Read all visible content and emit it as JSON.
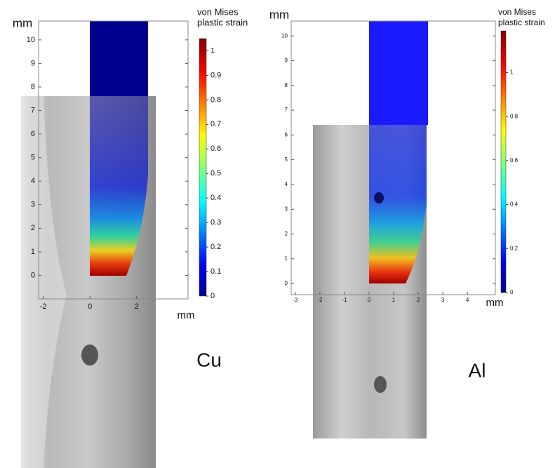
{
  "chart_data": [
    {
      "type": "heatmap",
      "y_label": "mm",
      "x_label": "mm",
      "colorbar_label": [
        "von Mises",
        "plastic strain"
      ],
      "xlim": [
        -2.2,
        4.2
      ],
      "xticks": [
        -2,
        0,
        2
      ],
      "ylim": [
        -1,
        10.8
      ],
      "yticks": [
        0,
        1,
        2,
        3,
        4,
        5,
        6,
        7,
        8,
        9,
        10
      ],
      "clim": [
        0,
        1.05
      ],
      "cticks": [
        0,
        0.1,
        0.2,
        0.3,
        0.4,
        0.5,
        0.6,
        0.7,
        0.8,
        0.9,
        1
      ],
      "annotation": "Cu"
    },
    {
      "type": "heatmap",
      "y_label": "mm",
      "x_label": "mm",
      "colorbar_label": [
        "von Mises",
        "plastic strain"
      ],
      "xlim": [
        -3.17,
        5.14
      ],
      "xticks": [
        -3,
        -2,
        -1,
        0,
        1,
        2,
        3,
        4
      ],
      "ylim": [
        -0.45,
        10.6
      ],
      "yticks": [
        0,
        1,
        2,
        3,
        4,
        5,
        6,
        7,
        8,
        9,
        10
      ],
      "clim": [
        0,
        1.19
      ],
      "cticks": [
        0,
        0.2,
        0.4,
        0.6,
        0.8,
        1
      ],
      "annotation": "Al"
    }
  ]
}
